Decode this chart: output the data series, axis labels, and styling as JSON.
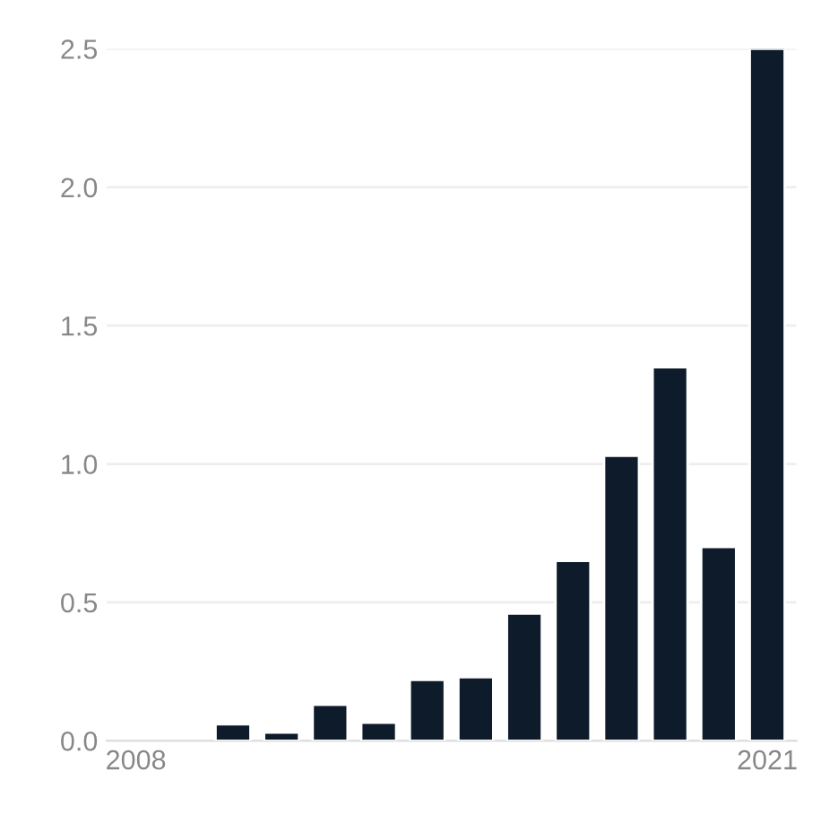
{
  "chart_data": {
    "type": "bar",
    "x": [
      2010,
      2011,
      2012,
      2013,
      2014,
      2015,
      2016,
      2017,
      2018,
      2019,
      2020,
      2021
    ],
    "values": [
      0.06,
      0.03,
      0.13,
      0.065,
      0.22,
      0.23,
      0.46,
      0.65,
      1.03,
      1.35,
      0.7,
      2.5
    ],
    "color": "#0d1b2a",
    "xlim": [
      2007.4,
      2021.6
    ],
    "xticks": [
      2008,
      2021
    ],
    "ylim": [
      0,
      2.5
    ],
    "yticks": [
      {
        "value": 0,
        "label": "0.0"
      },
      0.5,
      {
        "value": 1,
        "label": "1.0"
      },
      1.5,
      {
        "value": 2,
        "label": "2.0"
      },
      2.5
    ],
    "grid": "y"
  }
}
